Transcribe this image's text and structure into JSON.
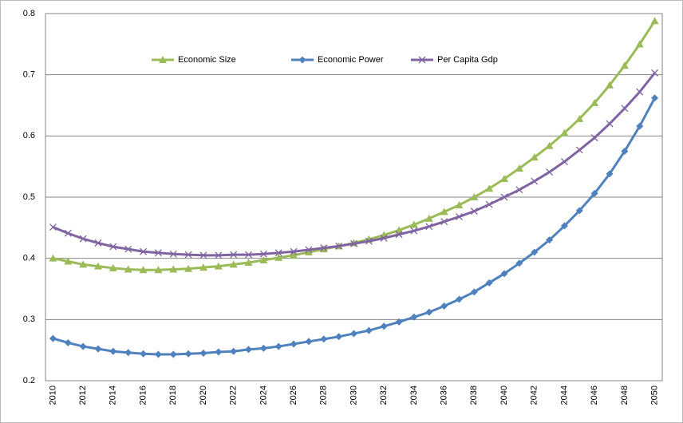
{
  "chart_data": {
    "type": "line",
    "categories": [
      "2010",
      null,
      "2012",
      null,
      "2014",
      null,
      "2016",
      null,
      "2018",
      null,
      "2020",
      null,
      "2022",
      null,
      "2024",
      null,
      "2026",
      null,
      "2028",
      null,
      "2030",
      null,
      "2032",
      null,
      "2034",
      null,
      "2036",
      null,
      "2038",
      null,
      "2040",
      null,
      "2042",
      null,
      "2044",
      null,
      "2046",
      null,
      "2048",
      null,
      "2050"
    ],
    "series": [
      {
        "name": "Economic Size",
        "color": "#9bbb59",
        "marker": "triangle",
        "values": [
          0.4,
          0.395,
          0.39,
          0.387,
          0.384,
          0.382,
          0.381,
          0.381,
          0.382,
          0.383,
          0.385,
          0.387,
          0.39,
          0.393,
          0.397,
          0.401,
          0.405,
          0.41,
          0.415,
          0.42,
          0.425,
          0.431,
          0.438,
          0.446,
          0.455,
          0.465,
          0.476,
          0.487,
          0.5,
          0.514,
          0.53,
          0.547,
          0.565,
          0.584,
          0.605,
          0.628,
          0.654,
          0.683,
          0.715,
          0.75,
          0.788
        ]
      },
      {
        "name": "Economic Power",
        "color": "#4f81bd",
        "marker": "diamond",
        "values": [
          0.269,
          0.262,
          0.256,
          0.252,
          0.248,
          0.246,
          0.244,
          0.243,
          0.243,
          0.244,
          0.245,
          0.247,
          0.248,
          0.251,
          0.253,
          0.256,
          0.26,
          0.264,
          0.268,
          0.272,
          0.277,
          0.282,
          0.289,
          0.296,
          0.304,
          0.312,
          0.322,
          0.333,
          0.345,
          0.36,
          0.375,
          0.392,
          0.41,
          0.43,
          0.453,
          0.478,
          0.506,
          0.538,
          0.575,
          0.616,
          0.662
        ]
      },
      {
        "name": "Per Capita Gdp",
        "color": "#8064a2",
        "marker": "x",
        "values": [
          0.451,
          0.441,
          0.432,
          0.425,
          0.419,
          0.415,
          0.411,
          0.409,
          0.407,
          0.406,
          0.405,
          0.405,
          0.406,
          0.406,
          0.407,
          0.409,
          0.411,
          0.414,
          0.417,
          0.42,
          0.424,
          0.428,
          0.433,
          0.439,
          0.445,
          0.452,
          0.46,
          0.468,
          0.477,
          0.488,
          0.5,
          0.512,
          0.526,
          0.541,
          0.558,
          0.577,
          0.597,
          0.62,
          0.645,
          0.672,
          0.703
        ]
      }
    ],
    "ylim": [
      0.2,
      0.8
    ],
    "yticks": [
      0.2,
      0.3,
      0.4,
      0.5,
      0.6,
      0.7,
      0.8
    ],
    "grid": true,
    "legend": "top"
  }
}
